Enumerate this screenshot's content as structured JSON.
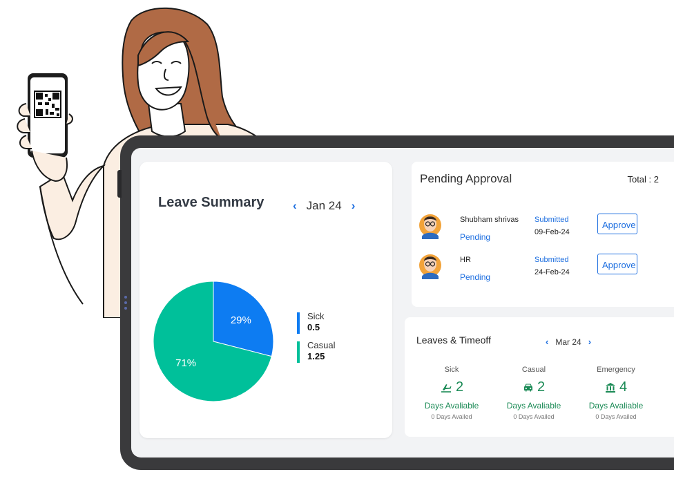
{
  "leave_summary": {
    "title": "Leave Summary",
    "month": "Jan 24",
    "legend": [
      {
        "label": "Sick",
        "value": "0.5",
        "color": "#0d7cf2"
      },
      {
        "label": "Casual",
        "value": "1.25",
        "color": "#00c09a"
      }
    ]
  },
  "chart_data": {
    "type": "pie",
    "slices": [
      {
        "name": "Sick",
        "value": 29,
        "label": "29%",
        "color": "#0d7cf2"
      },
      {
        "name": "Casual",
        "value": 71,
        "label": "71%",
        "color": "#00c09a"
      }
    ]
  },
  "pending_approval": {
    "title": "Pending Approval",
    "total": "Total : 2",
    "items": [
      {
        "name": "Shubham shrivas",
        "status": "Pending",
        "submitted_label": "Submitted",
        "date": "09-Feb-24",
        "action": "Approve"
      },
      {
        "name": "HR",
        "status": "Pending",
        "submitted_label": "Submitted",
        "date": "24-Feb-24",
        "action": "Approve"
      }
    ]
  },
  "timeoff": {
    "title": "Leaves & Timeoff",
    "month": "Mar 24",
    "categories": [
      {
        "name": "Sick",
        "icon": "airplane-icon",
        "count": "2",
        "available": "Days Avaliable",
        "availed": "0 Days Availed"
      },
      {
        "name": "Casual",
        "icon": "car-icon",
        "count": "2",
        "available": "Days Avaliable",
        "availed": "0 Days Availed"
      },
      {
        "name": "Emergency",
        "icon": "bank-icon",
        "count": "4",
        "available": "Days Avaliable",
        "availed": "0 Days Availed"
      }
    ]
  }
}
